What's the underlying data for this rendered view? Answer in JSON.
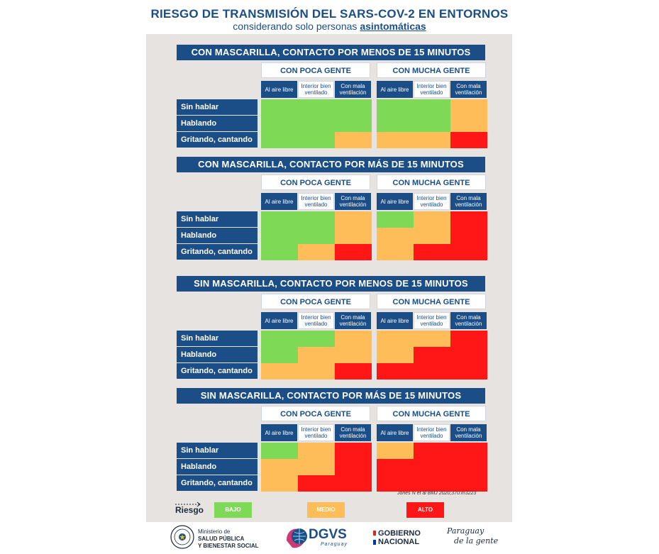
{
  "title": "RIESGO DE TRANSMISIÓN DEL SARS-COV-2 EN ENTORNOS",
  "subtitle_prefix": "considerando solo personas ",
  "subtitle_highlight": "asintomáticas",
  "colors": {
    "green": "#7ed957",
    "orange": "#ffbd59",
    "red": "#ff1616",
    "navy": "#1b4e86"
  },
  "groups": [
    "CON POCA GENTE",
    "CON MUCHA GENTE"
  ],
  "columns": [
    "Al aire libre",
    "Interior bien ventilado",
    "Con mala ventilación"
  ],
  "rows": [
    "Sin hablar",
    "Hablando",
    "Gritando, cantando"
  ],
  "sections": [
    {
      "title": "CON MASCARILLA, CONTACTO POR MENOS DE 15 MINUTOS",
      "poca": [
        [
          "green",
          "green",
          "green"
        ],
        [
          "green",
          "green",
          "green"
        ],
        [
          "green",
          "green",
          "orange"
        ]
      ],
      "mucha": [
        [
          "green",
          "green",
          "orange"
        ],
        [
          "green",
          "green",
          "orange"
        ],
        [
          "orange",
          "orange",
          "red"
        ]
      ]
    },
    {
      "title": "CON MASCARILLA, CONTACTO POR MÁS DE 15 MINUTOS",
      "poca": [
        [
          "green",
          "green",
          "orange"
        ],
        [
          "green",
          "green",
          "orange"
        ],
        [
          "green",
          "orange",
          "red"
        ]
      ],
      "mucha": [
        [
          "green",
          "orange",
          "red"
        ],
        [
          "orange",
          "orange",
          "red"
        ],
        [
          "orange",
          "red",
          "red"
        ]
      ]
    },
    {
      "title": "SIN MASCARILLA, CONTACTO POR MENOS DE 15 MINUTOS",
      "poca": [
        [
          "green",
          "green",
          "orange"
        ],
        [
          "green",
          "orange",
          "orange"
        ],
        [
          "orange",
          "orange",
          "red"
        ]
      ],
      "mucha": [
        [
          "orange",
          "orange",
          "red"
        ],
        [
          "orange",
          "red",
          "red"
        ],
        [
          "red",
          "red",
          "red"
        ]
      ]
    },
    {
      "title": "SIN MASCARILLA, CONTACTO POR MÁS DE 15 MINUTOS",
      "poca": [
        [
          "green",
          "orange",
          "red"
        ],
        [
          "orange",
          "orange",
          "red"
        ],
        [
          "orange",
          "red",
          "red"
        ]
      ],
      "mucha": [
        [
          "orange",
          "red",
          "red"
        ],
        [
          "red",
          "red",
          "red"
        ],
        [
          "red",
          "red",
          "red"
        ]
      ]
    }
  ],
  "citation": "Jones N et al BMJ 2020;370:m3223",
  "legend": {
    "label": "Riesgo",
    "low": "BAJO",
    "medium": "MEDIO",
    "high": "ALTO"
  },
  "footer": {
    "ministry_small": "Ministerio de",
    "ministry_line1": "SALUD PÚBLICA",
    "ministry_line2": "Y BIENESTAR SOCIAL",
    "dgvs": "DGVS",
    "dgvs_sub": "Paraguay",
    "gob_line1": "GOBIERNO",
    "gob_line2": "NACIONAL",
    "pyg_line1": "Paraguay",
    "pyg_line2": "de la gente"
  }
}
